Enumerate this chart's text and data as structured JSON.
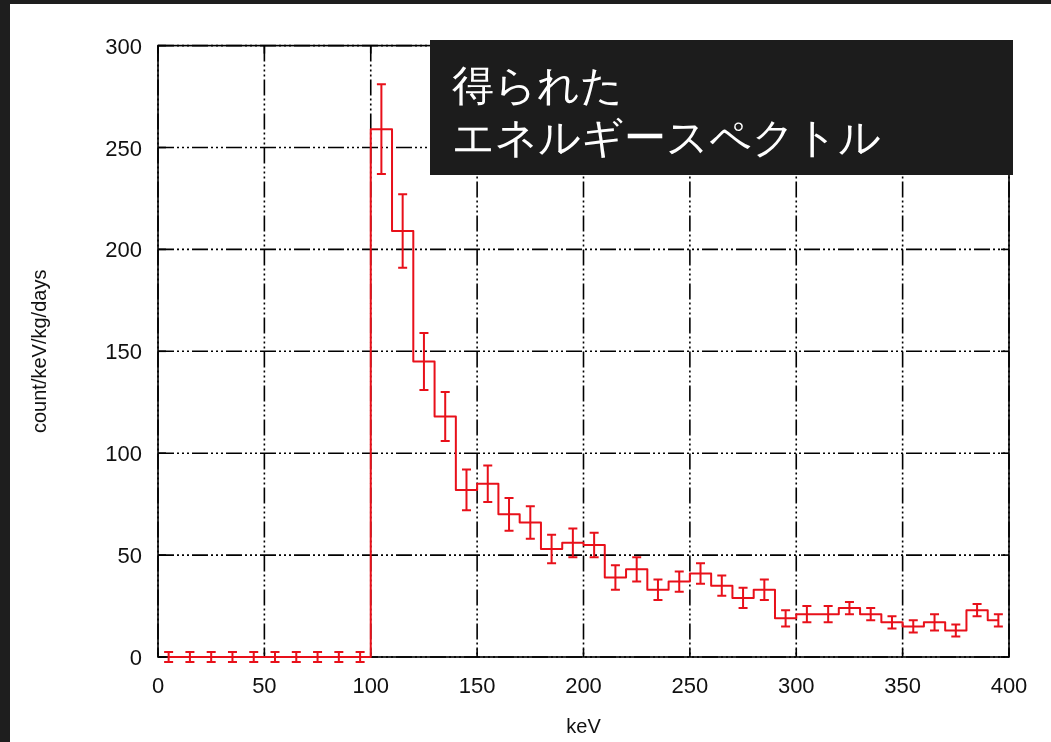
{
  "chart_data": {
    "type": "step",
    "title": "得られた",
    "subtitle": "エネルギースペクトル",
    "xlabel": "keV",
    "ylabel": "count/keV/kg/days",
    "x": [
      5,
      15,
      25,
      35,
      45,
      55,
      65,
      75,
      85,
      95,
      105,
      115,
      125,
      135,
      145,
      155,
      165,
      175,
      185,
      195,
      205,
      215,
      225,
      235,
      245,
      255,
      265,
      275,
      285,
      295,
      305,
      315,
      325,
      335,
      345,
      355,
      365,
      375,
      385,
      395
    ],
    "values": [
      0,
      0,
      0,
      0,
      0,
      0,
      0,
      0,
      0,
      0,
      259,
      209,
      145,
      118,
      82,
      85,
      70,
      66,
      53,
      56,
      55,
      39,
      43,
      33,
      37,
      41,
      35,
      29,
      33,
      19,
      21,
      21,
      24,
      21,
      17,
      15,
      17,
      13,
      23,
      18
    ],
    "errors": [
      2.5,
      2.5,
      2.5,
      2.5,
      2.5,
      2.5,
      2.5,
      2.5,
      2.5,
      2.5,
      22,
      18,
      14,
      12,
      10,
      9,
      8,
      8,
      7,
      7,
      6,
      6,
      6,
      5,
      5,
      5,
      5,
      5,
      5,
      4,
      4,
      4,
      3,
      3,
      3,
      3,
      4,
      3,
      3,
      3
    ],
    "color": "#e8101a",
    "xlim": [
      0,
      400
    ],
    "ylim": [
      0,
      300
    ],
    "xticks": [
      0,
      50,
      100,
      150,
      200,
      250,
      300,
      350,
      400
    ],
    "yticks": [
      0,
      50,
      100,
      150,
      200,
      250,
      300
    ],
    "grid": true
  }
}
